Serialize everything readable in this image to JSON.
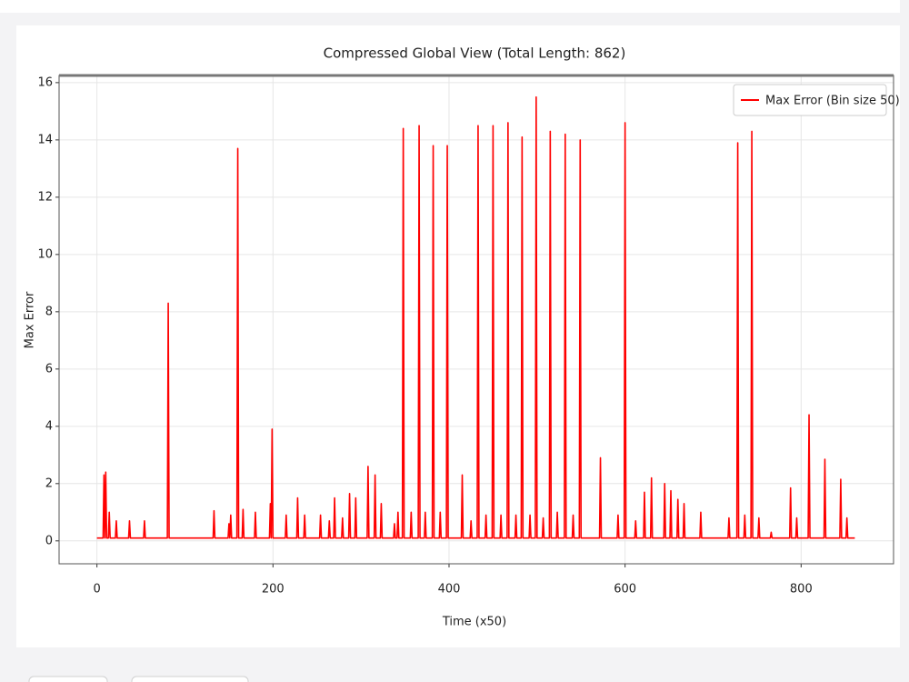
{
  "chart_data": {
    "type": "line",
    "title": "Compressed Global View (Total Length: 862)",
    "xlabel": "Time (x50)",
    "ylabel": "Max Error",
    "xlim": [
      -43,
      905
    ],
    "ylim": [
      -0.8,
      16.25
    ],
    "xticks": [
      0,
      200,
      400,
      600,
      800
    ],
    "yticks": [
      0,
      2,
      4,
      6,
      8,
      10,
      12,
      14,
      16
    ],
    "grid": true,
    "legend": "upper right",
    "x": [
      0,
      7,
      8,
      9,
      10,
      11,
      13,
      14,
      15,
      21,
      22,
      23,
      36,
      37,
      38,
      53,
      54,
      55,
      80,
      81,
      82,
      132,
      133,
      134,
      149,
      150,
      151,
      152,
      153,
      159,
      160,
      161,
      165,
      166,
      167,
      179,
      180,
      181,
      196,
      197,
      198,
      199,
      200,
      214,
      215,
      216,
      227,
      228,
      229,
      235,
      236,
      237,
      253,
      254,
      255,
      263,
      264,
      265,
      269,
      270,
      271,
      278,
      279,
      280,
      286,
      287,
      288,
      293,
      294,
      295,
      307,
      308,
      309,
      315,
      316,
      317,
      322,
      323,
      324,
      337,
      338,
      339,
      341,
      342,
      343,
      347,
      348,
      349,
      356,
      357,
      358,
      365,
      366,
      367,
      372,
      373,
      374,
      381,
      382,
      383,
      389,
      390,
      391,
      397,
      398,
      399,
      414,
      415,
      416,
      424,
      425,
      426,
      432,
      433,
      434,
      441,
      442,
      443,
      449,
      450,
      451,
      458,
      459,
      460,
      466,
      467,
      468,
      475,
      476,
      477,
      482,
      483,
      484,
      491,
      492,
      493,
      498,
      499,
      500,
      506,
      507,
      508,
      514,
      515,
      516,
      522,
      523,
      524,
      531,
      532,
      533,
      540,
      541,
      542,
      548,
      549,
      550,
      571,
      572,
      573,
      591,
      592,
      593,
      599,
      600,
      601,
      611,
      612,
      613,
      621,
      622,
      623,
      629,
      630,
      631,
      644,
      645,
      646,
      651,
      652,
      653,
      659,
      660,
      661,
      666,
      667,
      668,
      685,
      686,
      687,
      717,
      718,
      719,
      727,
      728,
      729,
      735,
      736,
      737,
      743,
      744,
      745,
      751,
      752,
      753,
      765,
      766,
      767,
      787,
      788,
      789,
      794,
      795,
      796,
      808,
      809,
      810,
      826,
      827,
      828,
      844,
      845,
      846,
      851,
      852,
      853,
      861
    ],
    "series": [
      {
        "name": "Max Error (Bin size 50)",
        "color": "#ff0000",
        "values": [
          0.1,
          0.1,
          2.3,
          0.1,
          2.4,
          0.1,
          0.1,
          1.0,
          0.1,
          0.1,
          0.7,
          0.1,
          0.1,
          0.7,
          0.1,
          0.1,
          0.7,
          0.1,
          0.1,
          8.3,
          0.1,
          0.1,
          1.05,
          0.1,
          0.1,
          0.6,
          0.1,
          0.9,
          0.1,
          0.1,
          13.7,
          0.1,
          0.1,
          1.1,
          0.1,
          0.1,
          1.0,
          0.1,
          0.1,
          1.3,
          0.1,
          3.9,
          0.1,
          0.1,
          0.9,
          0.1,
          0.1,
          1.5,
          0.1,
          0.1,
          0.9,
          0.1,
          0.1,
          0.9,
          0.1,
          0.1,
          0.7,
          0.1,
          0.1,
          1.5,
          0.1,
          0.1,
          0.8,
          0.1,
          0.1,
          1.65,
          0.1,
          0.1,
          1.5,
          0.1,
          0.1,
          2.6,
          0.1,
          0.1,
          2.3,
          0.1,
          0.1,
          1.3,
          0.1,
          0.1,
          0.6,
          0.1,
          0.1,
          1.0,
          0.1,
          0.1,
          14.4,
          0.1,
          0.1,
          1.0,
          0.1,
          0.1,
          14.5,
          0.1,
          0.1,
          1.0,
          0.1,
          0.1,
          13.8,
          0.1,
          0.1,
          1.0,
          0.1,
          0.1,
          13.8,
          0.1,
          0.1,
          2.3,
          0.1,
          0.1,
          0.7,
          0.1,
          0.1,
          14.5,
          0.1,
          0.1,
          0.9,
          0.1,
          0.1,
          14.5,
          0.1,
          0.1,
          0.9,
          0.1,
          0.1,
          14.6,
          0.1,
          0.1,
          0.9,
          0.1,
          0.1,
          14.1,
          0.1,
          0.1,
          0.9,
          0.1,
          0.1,
          15.5,
          0.1,
          0.1,
          0.8,
          0.1,
          0.1,
          14.3,
          0.1,
          0.1,
          1.0,
          0.1,
          0.1,
          14.2,
          0.1,
          0.1,
          0.9,
          0.1,
          0.1,
          14.0,
          0.1,
          0.1,
          2.9,
          0.1,
          0.1,
          0.9,
          0.1,
          0.1,
          14.6,
          0.1,
          0.1,
          0.7,
          0.1,
          0.1,
          1.7,
          0.1,
          0.1,
          2.2,
          0.1,
          0.1,
          2.0,
          0.1,
          0.1,
          1.75,
          0.1,
          0.1,
          1.45,
          0.1,
          0.1,
          1.3,
          0.1,
          0.1,
          1.0,
          0.1,
          0.1,
          0.8,
          0.1,
          0.1,
          13.9,
          0.1,
          0.1,
          0.9,
          0.1,
          0.1,
          14.3,
          0.1,
          0.1,
          0.8,
          0.1,
          0.1,
          0.3,
          0.1,
          0.1,
          1.85,
          0.1,
          0.1,
          0.8,
          0.1,
          0.1,
          4.4,
          0.1,
          0.1,
          2.85,
          0.1,
          0.1,
          2.15,
          0.1,
          0.1,
          0.8,
          0.1,
          0.1
        ]
      }
    ]
  }
}
